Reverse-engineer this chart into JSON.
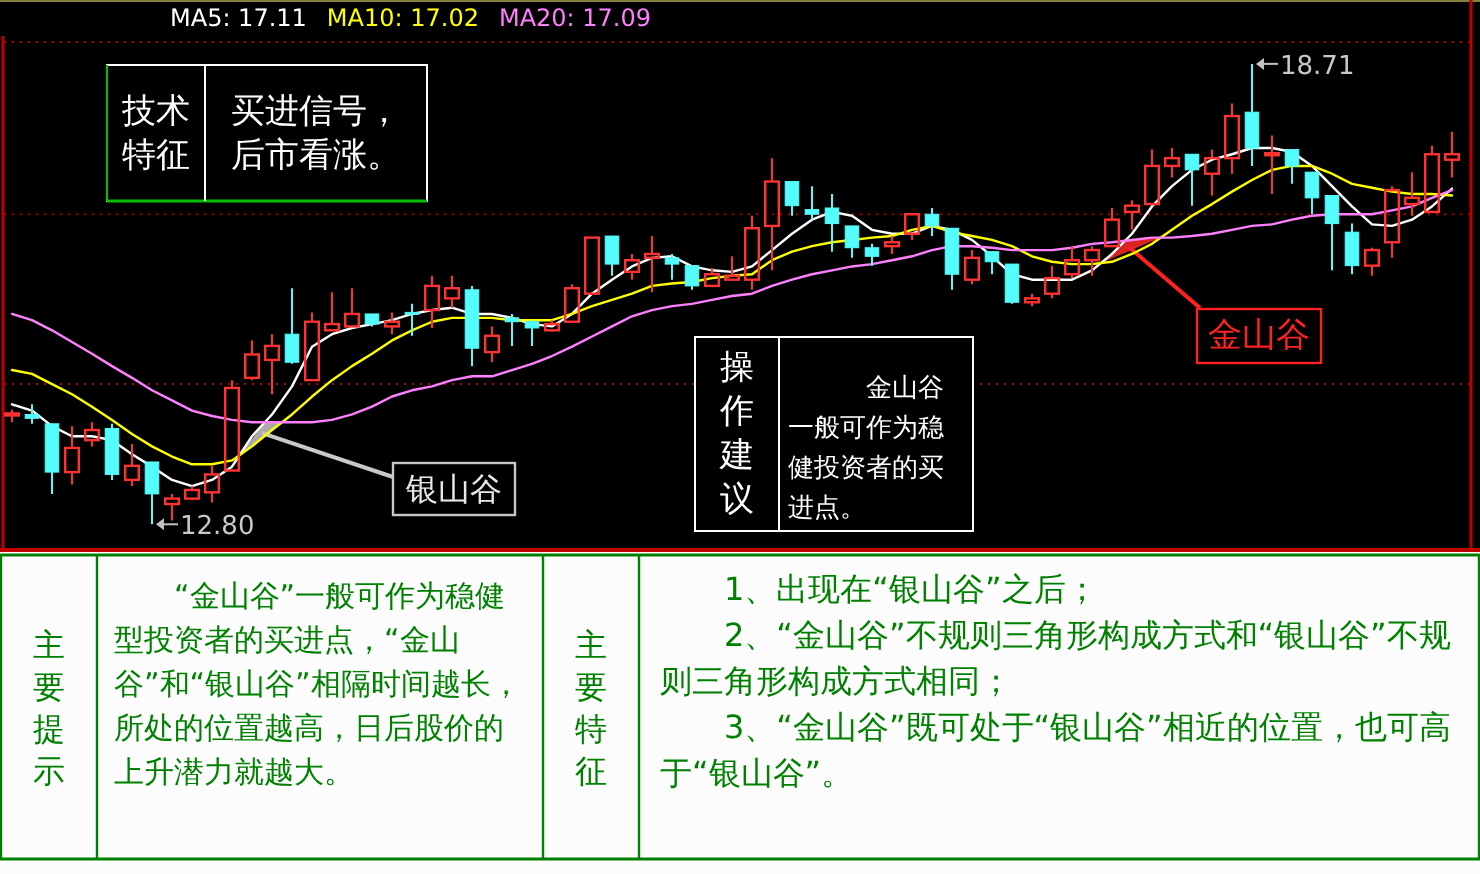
{
  "chart_data": {
    "type": "candlestick",
    "categories": [
      null,
      null,
      null,
      null,
      null,
      null,
      null,
      null,
      null,
      null,
      null,
      null,
      null,
      null,
      null,
      null,
      null,
      null,
      null,
      null,
      null,
      null,
      null,
      null,
      null,
      null,
      null,
      null,
      null,
      null,
      null,
      null,
      null,
      null,
      null,
      null,
      null,
      null,
      null,
      null,
      null,
      null,
      null,
      null,
      null,
      null,
      null,
      null,
      null,
      null,
      null,
      null,
      null,
      null,
      null,
      null,
      null,
      null,
      null,
      null,
      null,
      null,
      null,
      null,
      null,
      null,
      null,
      null,
      null,
      null,
      null,
      null,
      null
    ],
    "ohlc": [
      [
        14.21,
        14.27,
        14.11,
        14.21
      ],
      [
        14.21,
        14.34,
        14.09,
        14.16
      ],
      [
        14.09,
        14.09,
        13.19,
        13.47
      ],
      [
        13.47,
        14.06,
        13.31,
        13.78
      ],
      [
        13.88,
        14.11,
        13.8,
        14.01
      ],
      [
        14.03,
        14.09,
        13.37,
        13.44
      ],
      [
        13.37,
        13.83,
        13.29,
        13.55
      ],
      [
        13.6,
        13.6,
        12.8,
        13.19
      ],
      [
        13.06,
        13.19,
        12.85,
        13.13
      ],
      [
        13.13,
        13.29,
        13.11,
        13.24
      ],
      [
        13.21,
        13.55,
        13.08,
        13.44
      ],
      [
        13.49,
        14.65,
        13.49,
        14.55
      ],
      [
        14.68,
        15.16,
        14.65,
        14.98
      ],
      [
        14.91,
        15.24,
        14.47,
        15.09
      ],
      [
        15.24,
        15.83,
        14.86,
        14.88
      ],
      [
        14.65,
        15.52,
        14.65,
        15.4
      ],
      [
        15.29,
        15.78,
        15.29,
        15.37
      ],
      [
        15.34,
        15.83,
        15.34,
        15.5
      ],
      [
        15.5,
        15.5,
        15.34,
        15.37
      ],
      [
        15.34,
        15.52,
        15.24,
        15.4
      ],
      [
        15.52,
        15.63,
        15.22,
        15.5
      ],
      [
        15.55,
        15.99,
        15.32,
        15.86
      ],
      [
        15.7,
        15.99,
        15.58,
        15.83
      ],
      [
        15.81,
        15.86,
        14.83,
        15.06
      ],
      [
        15.01,
        15.34,
        14.88,
        15.22
      ],
      [
        15.45,
        15.5,
        15.09,
        15.4
      ],
      [
        15.4,
        15.42,
        15.09,
        15.32
      ],
      [
        15.29,
        15.42,
        15.27,
        15.37
      ],
      [
        15.4,
        15.88,
        15.4,
        15.83
      ],
      [
        15.76,
        16.48,
        15.76,
        16.48
      ],
      [
        16.5,
        16.5,
        15.99,
        16.14
      ],
      [
        16.04,
        16.27,
        15.94,
        16.19
      ],
      [
        16.22,
        16.5,
        15.78,
        16.27
      ],
      [
        16.22,
        16.27,
        15.94,
        16.14
      ],
      [
        16.12,
        16.12,
        15.81,
        15.86
      ],
      [
        15.86,
        16.09,
        15.86,
        16.01
      ],
      [
        15.94,
        16.24,
        15.94,
        15.99
      ],
      [
        15.94,
        16.76,
        15.81,
        16.6
      ],
      [
        16.63,
        17.5,
        16.06,
        17.2
      ],
      [
        17.2,
        17.2,
        16.76,
        16.89
      ],
      [
        16.84,
        17.14,
        16.71,
        16.78
      ],
      [
        16.86,
        17.04,
        16.3,
        16.66
      ],
      [
        16.63,
        16.63,
        16.22,
        16.35
      ],
      [
        16.35,
        16.4,
        16.12,
        16.24
      ],
      [
        16.37,
        16.5,
        16.27,
        16.42
      ],
      [
        16.53,
        16.78,
        16.45,
        16.78
      ],
      [
        16.78,
        16.86,
        16.5,
        16.63
      ],
      [
        16.6,
        16.6,
        15.81,
        16.01
      ],
      [
        15.94,
        16.32,
        15.88,
        16.22
      ],
      [
        16.3,
        16.3,
        16.01,
        16.17
      ],
      [
        16.14,
        16.14,
        15.63,
        15.65
      ],
      [
        15.65,
        15.76,
        15.6,
        15.7
      ],
      [
        15.76,
        16.12,
        15.7,
        15.96
      ],
      [
        16.01,
        16.37,
        15.96,
        16.19
      ],
      [
        16.19,
        16.37,
        15.99,
        16.32
      ],
      [
        16.37,
        16.86,
        16.37,
        16.71
      ],
      [
        16.81,
        16.96,
        16.58,
        16.89
      ],
      [
        16.91,
        17.61,
        16.91,
        17.4
      ],
      [
        17.4,
        17.63,
        17.25,
        17.5
      ],
      [
        17.55,
        17.55,
        16.89,
        17.35
      ],
      [
        17.3,
        17.61,
        17.02,
        17.5
      ],
      [
        17.5,
        18.2,
        17.3,
        18.04
      ],
      [
        18.09,
        18.71,
        17.4,
        17.63
      ],
      [
        17.55,
        17.79,
        17.04,
        17.55
      ],
      [
        17.61,
        17.61,
        17.17,
        17.4
      ],
      [
        17.32,
        17.32,
        16.78,
        16.99
      ],
      [
        17.02,
        17.02,
        16.06,
        16.66
      ],
      [
        16.55,
        16.66,
        16.01,
        16.12
      ],
      [
        16.12,
        16.35,
        15.99,
        16.32
      ],
      [
        16.42,
        17.14,
        16.22,
        17.09
      ],
      [
        16.91,
        17.32,
        16.76,
        16.99
      ],
      [
        16.81,
        17.66,
        16.81,
        17.55
      ],
      [
        17.48,
        17.84,
        17.25,
        17.55
      ]
    ],
    "colors": [
      "#ff3232",
      "#54fcfc",
      "#54fcfc",
      "#ff3232",
      "#ff3232",
      "#54fcfc",
      "#ff3232",
      "#54fcfc",
      "#ff3232",
      "#ff3232",
      "#ff3232",
      "#ff3232",
      "#ff3232",
      "#ff3232",
      "#54fcfc",
      "#ff3232",
      "#ff3232",
      "#ff3232",
      "#54fcfc",
      "#ff3232",
      "#54fcfc",
      "#ff3232",
      "#ff3232",
      "#54fcfc",
      "#ff3232",
      "#54fcfc",
      "#54fcfc",
      "#ff3232",
      "#ff3232",
      "#ff3232",
      "#54fcfc",
      "#ff3232",
      "#ff3232",
      "#54fcfc",
      "#54fcfc",
      "#ff3232",
      "#ff3232",
      "#ff3232",
      "#ff3232",
      "#54fcfc",
      "#54fcfc",
      "#54fcfc",
      "#54fcfc",
      "#54fcfc",
      "#ff3232",
      "#ff3232",
      "#54fcfc",
      "#54fcfc",
      "#ff3232",
      "#54fcfc",
      "#54fcfc",
      "#ff3232",
      "#ff3232",
      "#ff3232",
      "#ff3232",
      "#ff3232",
      "#ff3232",
      "#ff3232",
      "#ff3232",
      "#54fcfc",
      "#ff3232",
      "#ff3232",
      "#54fcfc",
      "#ff3232",
      "#54fcfc",
      "#54fcfc",
      "#54fcfc",
      "#54fcfc",
      "#ff3232",
      "#ff3232",
      "#ff3232",
      "#ff3232",
      "#ff3232"
    ],
    "series": [
      {
        "type": "line",
        "name": "MA5: 17.11",
        "color": "#ffffff",
        "values": [
          14.34,
          14.26,
          14.06,
          13.93,
          13.93,
          13.88,
          13.7,
          13.54,
          13.37,
          13.29,
          13.37,
          13.54,
          13.93,
          14.21,
          14.57,
          15.08,
          15.24,
          15.32,
          15.37,
          15.42,
          15.5,
          15.55,
          15.58,
          15.5,
          15.5,
          15.45,
          15.37,
          15.34,
          15.5,
          15.76,
          15.94,
          16.11,
          16.22,
          16.24,
          16.11,
          16.06,
          16.04,
          16.11,
          16.32,
          16.53,
          16.71,
          16.81,
          16.76,
          16.58,
          16.53,
          16.53,
          16.63,
          16.58,
          16.45,
          16.24,
          16.01,
          15.94,
          15.94,
          15.94,
          16.06,
          16.27,
          16.53,
          16.88,
          17.14,
          17.35,
          17.48,
          17.55,
          17.63,
          17.63,
          17.58,
          17.4,
          17.14,
          16.88,
          16.65,
          16.63,
          16.71,
          16.88,
          17.11
        ]
      },
      {
        "type": "line",
        "name": "MA10: 17.02",
        "color": "#ffff00",
        "values": [
          14.78,
          14.73,
          14.6,
          14.47,
          14.31,
          14.14,
          13.96,
          13.8,
          13.67,
          13.57,
          13.57,
          13.62,
          13.8,
          14.01,
          14.21,
          14.44,
          14.65,
          14.83,
          14.99,
          15.16,
          15.29,
          15.4,
          15.45,
          15.45,
          15.45,
          15.42,
          15.42,
          15.42,
          15.5,
          15.6,
          15.68,
          15.76,
          15.86,
          15.89,
          15.91,
          15.96,
          15.99,
          16.01,
          16.19,
          16.3,
          16.37,
          16.42,
          16.45,
          16.48,
          16.5,
          16.58,
          16.63,
          16.55,
          16.5,
          16.45,
          16.37,
          16.24,
          16.17,
          16.14,
          16.14,
          16.17,
          16.27,
          16.4,
          16.58,
          16.76,
          16.91,
          17.07,
          17.22,
          17.35,
          17.4,
          17.4,
          17.3,
          17.17,
          17.12,
          17.07,
          17.04,
          17.04,
          17.02
        ]
      },
      {
        "type": "line",
        "name": "MA20: 17.09",
        "color": "#ff80ff",
        "values": [
          15.5,
          15.42,
          15.29,
          15.14,
          14.99,
          14.83,
          14.68,
          14.52,
          14.39,
          14.26,
          14.19,
          14.14,
          14.11,
          14.11,
          14.11,
          14.11,
          14.14,
          14.21,
          14.31,
          14.44,
          14.52,
          14.57,
          14.65,
          14.7,
          14.7,
          14.78,
          14.86,
          14.96,
          15.08,
          15.21,
          15.34,
          15.47,
          15.55,
          15.6,
          15.63,
          15.68,
          15.73,
          15.76,
          15.86,
          15.94,
          16.01,
          16.06,
          16.11,
          16.14,
          16.19,
          16.24,
          16.32,
          16.37,
          16.37,
          16.35,
          16.32,
          16.32,
          16.32,
          16.35,
          16.4,
          16.42,
          16.45,
          16.48,
          16.48,
          16.5,
          16.53,
          16.58,
          16.63,
          16.65,
          16.71,
          16.76,
          16.78,
          16.78,
          16.78,
          16.83,
          16.88,
          16.99,
          17.09
        ]
      }
    ],
    "ylim": [
      12.47,
      19.53
    ],
    "yticks": [
      {
        "value": 18.99,
        "label": null
      },
      {
        "value": 16.78,
        "label": null
      },
      {
        "value": 14.6,
        "label": null
      }
    ],
    "grid": "y",
    "legend": "top left",
    "annotations": [
      "技术特征",
      "买进信号，后市看涨。",
      "银山谷",
      "操作建议",
      "金山谷一般可作为稳健投资者的买进点。",
      "金山谷",
      "主要提示",
      "“金山谷”一般可作为稳健型投资者的买进点，“金山谷”和“银山谷”相隔时间越长，所处的位置越高，日后股价的上升潜力就越大。",
      "主要特征",
      "1、出现在“银山谷”之后；",
      "2、“金山谷”不规则三角形构成方式和“银山谷”不规则三角形构成方式相同；",
      "3、“金山谷”既可处于“银山谷”相近的位置，也可高于“银山谷”。",
      "18.71",
      "12.80"
    ]
  }
}
